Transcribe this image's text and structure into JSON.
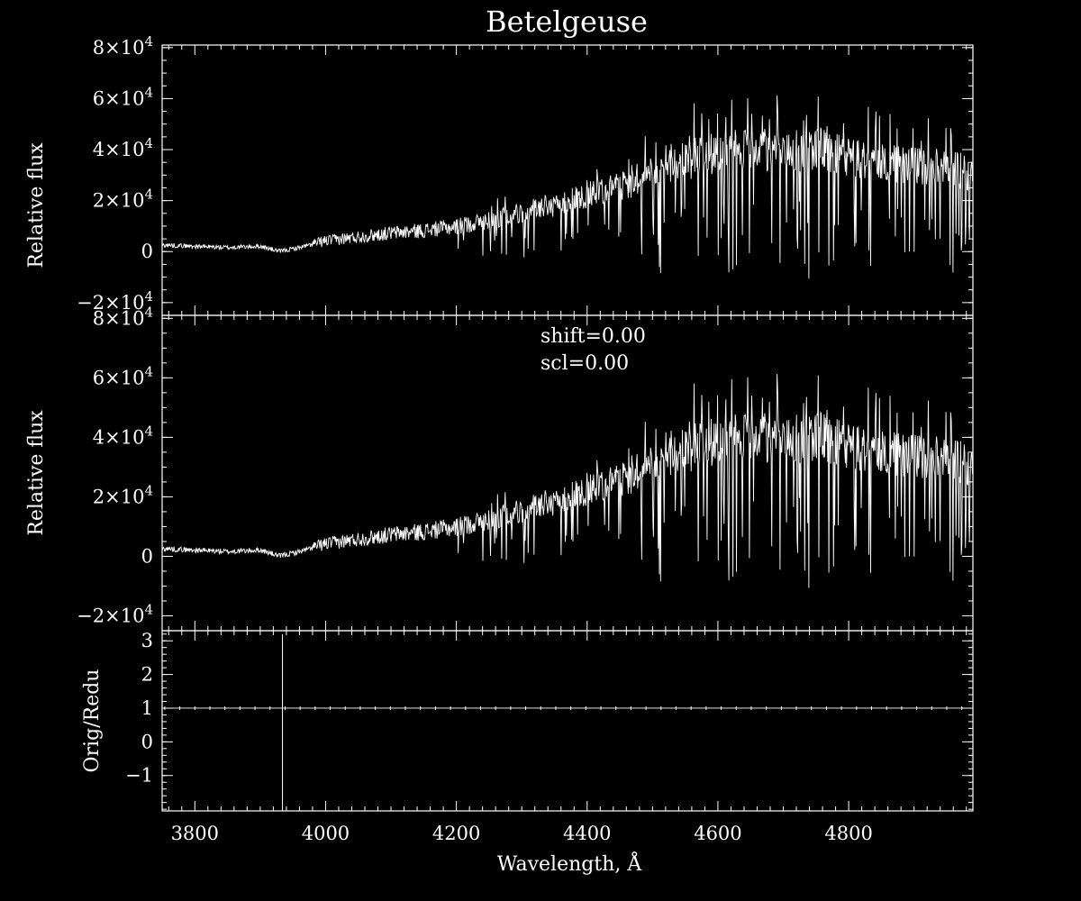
{
  "chart_data": {
    "title": "Betelgeuse",
    "xlabel": "Wavelength, Å",
    "xlim": [
      3750,
      4990
    ],
    "xticks": [
      3800,
      4000,
      4200,
      4400,
      4600,
      4800
    ],
    "panels": [
      {
        "type": "line",
        "ylabel": "Relative flux",
        "ylim": [
          -25000,
          81000
        ],
        "yticks": [
          {
            "value": 80000,
            "mantissa": "8",
            "exp": "4"
          },
          {
            "value": 60000,
            "mantissa": "6",
            "exp": "4"
          },
          {
            "value": 40000,
            "mantissa": "4",
            "exp": "4"
          },
          {
            "value": 20000,
            "mantissa": "2",
            "exp": "4"
          },
          {
            "value": 0,
            "mantissa": "0",
            "exp": ""
          },
          {
            "value": -20000,
            "mantissa": "−2",
            "exp": "4"
          }
        ],
        "series_envelope": {
          "x": [
            3750,
            3800,
            3850,
            3900,
            3930,
            3960,
            4000,
            4050,
            4100,
            4150,
            4200,
            4250,
            4300,
            4350,
            4400,
            4450,
            4500,
            4550,
            4600,
            4650,
            4700,
            4750,
            4800,
            4850,
            4900,
            4950,
            4990
          ],
          "y": [
            2500,
            2000,
            1500,
            2000,
            0,
            1500,
            4000,
            5500,
            7000,
            8000,
            9500,
            12000,
            15000,
            18000,
            22000,
            25000,
            30000,
            35000,
            38000,
            40000,
            38000,
            40000,
            36000,
            34000,
            33000,
            32000,
            30000
          ]
        }
      },
      {
        "type": "line",
        "ylabel": "Relative flux",
        "ylim": [
          -25000,
          81000
        ],
        "yticks": [
          {
            "value": 80000,
            "mantissa": "8",
            "exp": "4"
          },
          {
            "value": 60000,
            "mantissa": "6",
            "exp": "4"
          },
          {
            "value": 40000,
            "mantissa": "4",
            "exp": "4"
          },
          {
            "value": 20000,
            "mantissa": "2",
            "exp": "4"
          },
          {
            "value": 0,
            "mantissa": "0",
            "exp": ""
          },
          {
            "value": -20000,
            "mantissa": "−2",
            "exp": "4"
          }
        ],
        "annotations": [
          "shift=0.00",
          "scl=0.00"
        ],
        "series_envelope": {
          "x": [
            3750,
            3800,
            3850,
            3900,
            3930,
            3960,
            4000,
            4050,
            4100,
            4150,
            4200,
            4250,
            4300,
            4350,
            4400,
            4450,
            4500,
            4550,
            4600,
            4650,
            4700,
            4750,
            4800,
            4850,
            4900,
            4950,
            4990
          ],
          "y": [
            2500,
            2000,
            1500,
            2000,
            0,
            1500,
            4000,
            5500,
            7000,
            8000,
            9500,
            12000,
            15000,
            18000,
            22000,
            25000,
            30000,
            35000,
            38000,
            40000,
            38000,
            40000,
            36000,
            34000,
            33000,
            32000,
            30000
          ]
        }
      },
      {
        "type": "line",
        "ylabel": "Orig/Redu",
        "ylim": [
          -2.05,
          3.3
        ],
        "yticks": [
          {
            "value": 3,
            "mantissa": "3",
            "exp": ""
          },
          {
            "value": 2,
            "mantissa": "2",
            "exp": ""
          },
          {
            "value": 1,
            "mantissa": "1",
            "exp": ""
          },
          {
            "value": 0,
            "mantissa": "0",
            "exp": ""
          },
          {
            "value": -1,
            "mantissa": "−1",
            "exp": ""
          }
        ],
        "ratio_level": 1.0,
        "vertical_line_x": 3934
      }
    ]
  }
}
